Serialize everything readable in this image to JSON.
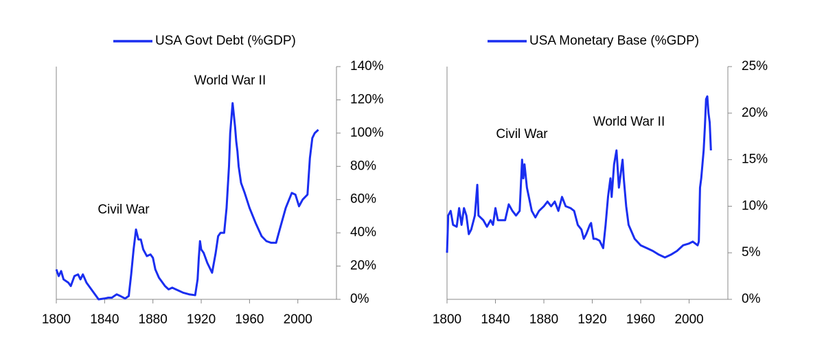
{
  "chart_data": [
    {
      "type": "line",
      "legend": "top",
      "annotations": [
        "World War II",
        "Civil War"
      ],
      "x": [
        1800,
        1802,
        1804,
        1806,
        1810,
        1812,
        1815,
        1818,
        1820,
        1822,
        1825,
        1830,
        1835,
        1840,
        1843,
        1846,
        1848,
        1850,
        1853,
        1857,
        1860,
        1862,
        1864,
        1866,
        1868,
        1870,
        1872,
        1875,
        1878,
        1880,
        1882,
        1885,
        1888,
        1890,
        1893,
        1896,
        1899,
        1902,
        1905,
        1910,
        1915,
        1917,
        1918,
        1919,
        1920,
        1922,
        1925,
        1929,
        1932,
        1934,
        1936,
        1939,
        1941,
        1943,
        1944,
        1946,
        1948,
        1949,
        1950,
        1951,
        1953,
        1956,
        1960,
        1965,
        1970,
        1974,
        1978,
        1982,
        1985,
        1990,
        1995,
        1998,
        2001,
        2004,
        2008,
        2010,
        2012,
        2014,
        2017
      ],
      "series": [
        {
          "name": "USA Govt Debt (%GDP)",
          "color": "#1a2ef0",
          "values": [
            18,
            14,
            17,
            12,
            10,
            8,
            14,
            15,
            12,
            15,
            10,
            5,
            0,
            0.5,
            1,
            1,
            2,
            3,
            2,
            0.5,
            2,
            15,
            30,
            42,
            36,
            36,
            30,
            26,
            27,
            25,
            18,
            13,
            10,
            8,
            6,
            7,
            6,
            5,
            4,
            3,
            2.5,
            12,
            25,
            35,
            30,
            28,
            22,
            16,
            28,
            38,
            40,
            40,
            55,
            80,
            100,
            118,
            104,
            95,
            89,
            80,
            70,
            64,
            55,
            46,
            38,
            35,
            34,
            34,
            42,
            55,
            64,
            63,
            56,
            60,
            63,
            85,
            97,
            100,
            102
          ]
        }
      ],
      "xlim": [
        1800,
        2032
      ],
      "xticks": [
        1800,
        1840,
        1880,
        1920,
        1960,
        2000
      ],
      "ylim": [
        0,
        140
      ],
      "yticks": [
        {
          "value": 0,
          "label": "0%"
        },
        {
          "value": 20,
          "label": "20%"
        },
        {
          "value": 40,
          "label": "40%"
        },
        {
          "value": 60,
          "label": "60%"
        },
        {
          "value": 80,
          "label": "80%"
        },
        {
          "value": 100,
          "label": "100%"
        },
        {
          "value": 120,
          "label": "120%"
        },
        {
          "value": 140,
          "label": "140%"
        }
      ],
      "grid": false
    },
    {
      "type": "line",
      "legend": "top",
      "annotations": [
        "Civil War",
        "World War II"
      ],
      "x": [
        1800,
        1801,
        1803,
        1805,
        1808,
        1810,
        1812,
        1814,
        1816,
        1818,
        1820,
        1823,
        1825,
        1826,
        1830,
        1833,
        1836,
        1838,
        1840,
        1842,
        1845,
        1848,
        1851,
        1854,
        1857,
        1860,
        1862,
        1863,
        1864,
        1866,
        1870,
        1873,
        1876,
        1880,
        1883,
        1886,
        1889,
        1892,
        1895,
        1898,
        1902,
        1905,
        1908,
        1911,
        1913,
        1915,
        1918,
        1919,
        1921,
        1923,
        1926,
        1929,
        1931,
        1933,
        1935,
        1936,
        1938,
        1940,
        1941,
        1942,
        1945,
        1946,
        1948,
        1950,
        1955,
        1960,
        1965,
        1970,
        1975,
        1980,
        1985,
        1990,
        1995,
        2000,
        2003,
        2007,
        2008,
        2009,
        2010,
        2011,
        2012,
        2013,
        2014,
        2015,
        2016,
        2017,
        2018
      ],
      "series": [
        {
          "name": "USA Monetary Base (%GDP)",
          "color": "#1a2ef0",
          "values": [
            5,
            9,
            9.5,
            8,
            7.8,
            9.8,
            8,
            9.8,
            9,
            7,
            7.5,
            9,
            12.3,
            9,
            8.5,
            7.8,
            8.5,
            8,
            9.8,
            8.5,
            8.5,
            8.5,
            10.2,
            9.5,
            9,
            9.5,
            15,
            13,
            14.5,
            12,
            9.5,
            8.8,
            9.5,
            10,
            10.5,
            10,
            10.5,
            9.5,
            11,
            10,
            9.8,
            9.5,
            8,
            7.5,
            6.5,
            7,
            8,
            8.2,
            6.5,
            6.5,
            6.3,
            5.5,
            8,
            11,
            13,
            11,
            14.5,
            16,
            14,
            12,
            15,
            13,
            10,
            8,
            6.5,
            5.8,
            5.5,
            5.2,
            4.8,
            4.5,
            4.8,
            5.2,
            5.8,
            6,
            6.2,
            5.8,
            6.2,
            12,
            13,
            14.5,
            16,
            18.5,
            21.5,
            21.8,
            20,
            19,
            16
          ]
        }
      ],
      "xlim": [
        1800,
        2032
      ],
      "xticks": [
        1800,
        1840,
        1880,
        1920,
        1960,
        2000
      ],
      "ylim": [
        0,
        25
      ],
      "yticks": [
        {
          "value": 0,
          "label": "0%"
        },
        {
          "value": 5,
          "label": "5%"
        },
        {
          "value": 10,
          "label": "10%"
        },
        {
          "value": 15,
          "label": "15%"
        },
        {
          "value": 20,
          "label": "20%"
        },
        {
          "value": 25,
          "label": "25%"
        }
      ],
      "grid": false
    }
  ]
}
